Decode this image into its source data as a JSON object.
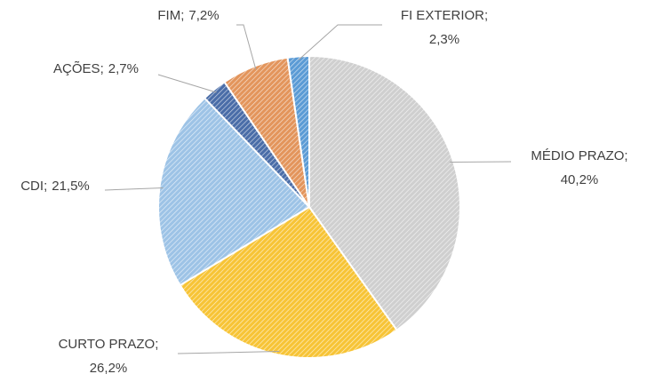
{
  "chart_data": {
    "type": "pie",
    "categories": [
      "MÉDIO PRAZO",
      "CURTO PRAZO",
      "CDI",
      "AÇÕES",
      "FIM",
      "FI EXTERIOR"
    ],
    "values": [
      40.2,
      26.2,
      21.5,
      2.7,
      7.2,
      2.3
    ],
    "value_labels": [
      "40,2%",
      "26,2%",
      "21,5%",
      "2,7%",
      "7,2%",
      "2,3%"
    ],
    "separator": ";",
    "colors": [
      "#cfcfcf",
      "#f7c436",
      "#9dc3e6",
      "#4a6da8",
      "#e3955c",
      "#5b9bd5"
    ]
  }
}
